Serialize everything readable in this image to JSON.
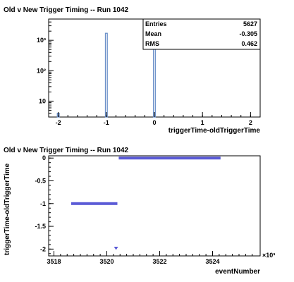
{
  "chart_data": [
    {
      "type": "bar",
      "title": "Old v New Trigger Timing -- Run 1042",
      "xlabel": "triggerTime-oldTriggerTime",
      "ylabel": "",
      "yscale": "log",
      "xlim": [
        -2.2,
        2.2
      ],
      "ylim": [
        3,
        5000
      ],
      "x_ticks": [
        -2,
        -1,
        0,
        1,
        2
      ],
      "y_ticks": [
        {
          "value": 10,
          "label": "10"
        },
        {
          "value": 100,
          "label": "10²"
        },
        {
          "value": 1000,
          "label": "10³"
        }
      ],
      "bin_width": 0.04,
      "bins": [
        {
          "x": -2.0,
          "count": 4
        },
        {
          "x": -1.0,
          "count": 1700
        },
        {
          "x": 0.0,
          "count": 3900
        }
      ],
      "stats_box": {
        "rows": [
          {
            "label": "Entries",
            "value": "5627"
          },
          {
            "label": "Mean",
            "value": "-0.305"
          },
          {
            "label": "RMS",
            "value": "0.462"
          }
        ]
      },
      "colors": {
        "bar_line": "#6a8fc8",
        "axis": "#000000"
      }
    },
    {
      "type": "scatter",
      "title": "Old v New Trigger Timing -- Run 1042",
      "xlabel": "eventNumber",
      "ylabel": "triggerTime-oldTriggerTime",
      "x_multiplier_label": "×10³",
      "xlim": [
        3517.8,
        3525.8
      ],
      "ylim": [
        -2.15,
        0.05
      ],
      "x_ticks": [
        3518,
        3520,
        3522,
        3524
      ],
      "y_ticks": [
        {
          "value": 0,
          "label": "0"
        },
        {
          "value": -0.5,
          "label": "-0.5"
        },
        {
          "value": -1,
          "label": "-1"
        },
        {
          "value": -1.5,
          "label": "-1.5"
        },
        {
          "value": -2,
          "label": "-2"
        }
      ],
      "segments": [
        {
          "x_start": 3518.65,
          "x_end": 3520.4,
          "y": -1
        },
        {
          "x_start": 3520.45,
          "x_end": 3524.3,
          "y": 0
        }
      ],
      "points": [
        {
          "x": 3520.35,
          "y": -1.98
        }
      ],
      "colors": {
        "marker": "#5a5ad6",
        "axis": "#000000"
      }
    }
  ]
}
